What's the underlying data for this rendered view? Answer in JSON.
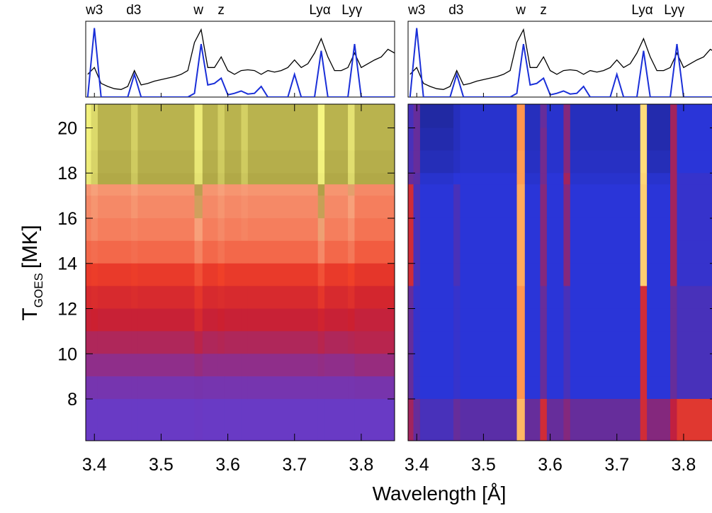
{
  "chart_data": {
    "type": "heatmap",
    "xlabel": "Wavelength [Å]",
    "ylabel": {
      "main": "T",
      "sub": "GOES",
      "unit": "[MK]"
    },
    "xlim": [
      3.387,
      3.85
    ],
    "ylim": [
      6.15,
      21.05
    ],
    "xticks": [
      3.4,
      3.5,
      3.6,
      3.7,
      3.8
    ],
    "yticks": [
      8,
      10,
      12,
      14,
      16,
      18,
      20
    ],
    "line_labels": [
      {
        "label": "w3",
        "x": 3.4
      },
      {
        "label": "d3",
        "x": 3.459
      },
      {
        "label": "w",
        "x": 3.556
      },
      {
        "label": "z",
        "x": 3.59
      },
      {
        "label": "Lyα",
        "x": 3.738
      },
      {
        "label": "Lyγ",
        "x": 3.786
      }
    ],
    "spectrum": {
      "ylim": [
        0,
        1
      ],
      "x": [
        3.39,
        3.4,
        3.41,
        3.42,
        3.43,
        3.44,
        3.45,
        3.46,
        3.47,
        3.48,
        3.49,
        3.5,
        3.51,
        3.52,
        3.53,
        3.54,
        3.55,
        3.56,
        3.57,
        3.58,
        3.59,
        3.6,
        3.61,
        3.62,
        3.63,
        3.64,
        3.65,
        3.66,
        3.67,
        3.68,
        3.69,
        3.7,
        3.71,
        3.72,
        3.73,
        3.74,
        3.75,
        3.76,
        3.77,
        3.78,
        3.79,
        3.8,
        3.81,
        3.82,
        3.83,
        3.84,
        3.85
      ],
      "series": [
        {
          "color": "#000000",
          "values": [
            0.3,
            0.39,
            0.18,
            0.14,
            0.11,
            0.1,
            0.14,
            0.35,
            0.16,
            0.18,
            0.21,
            0.23,
            0.25,
            0.27,
            0.3,
            0.35,
            0.72,
            0.89,
            0.39,
            0.39,
            0.53,
            0.35,
            0.3,
            0.35,
            0.36,
            0.35,
            0.3,
            0.35,
            0.33,
            0.35,
            0.39,
            0.49,
            0.39,
            0.44,
            0.58,
            0.77,
            0.53,
            0.35,
            0.35,
            0.39,
            0.58,
            0.39,
            0.44,
            0.49,
            0.53,
            0.63,
            0.58
          ]
        },
        {
          "color": "#1a2fd8",
          "values": [
            0,
            0.91,
            0,
            0,
            0,
            0,
            0,
            0.3,
            0,
            0,
            0,
            0,
            0,
            0,
            0,
            0,
            0.05,
            0.7,
            0.16,
            0.18,
            0.25,
            0.03,
            0.05,
            0.08,
            0.04,
            0.05,
            0.14,
            0,
            0,
            0,
            0,
            0.3,
            0,
            0,
            0,
            0.61,
            0,
            0,
            0,
            0,
            0.7,
            0,
            0,
            0,
            0,
            0,
            0
          ]
        }
      ]
    },
    "x_edges": [
      3.387,
      3.395,
      3.405,
      3.455,
      3.465,
      3.55,
      3.562,
      3.585,
      3.595,
      3.62,
      3.63,
      3.735,
      3.745,
      3.78,
      3.79,
      3.85
    ],
    "y_edges": [
      21.05,
      20,
      19,
      18,
      17.5,
      17,
      16,
      15,
      14,
      13,
      12,
      11,
      10,
      9,
      8,
      6.15
    ],
    "panels": [
      {
        "show_yticks": true,
        "colormap": [
          {
            "stop": 0,
            "color": "#5a40e0"
          },
          {
            "stop": 0.25,
            "color": "#7a33a8"
          },
          {
            "stop": 0.45,
            "color": "#cc2030"
          },
          {
            "stop": 0.55,
            "color": "#f04028"
          },
          {
            "stop": 0.72,
            "color": "#f7a07a"
          },
          {
            "stop": 0.8,
            "color": "#a8a040"
          },
          {
            "stop": 1,
            "color": "#ffff88"
          }
        ],
        "z": [
          [
            0.97,
            0.92,
            0.84,
            0.9,
            0.84,
            0.96,
            0.84,
            0.9,
            0.84,
            0.9,
            0.84,
            0.98,
            0.84,
            0.94,
            0.84
          ],
          [
            0.97,
            0.92,
            0.84,
            0.9,
            0.84,
            0.96,
            0.84,
            0.9,
            0.84,
            0.9,
            0.84,
            0.98,
            0.84,
            0.94,
            0.84
          ],
          [
            0.96,
            0.91,
            0.83,
            0.89,
            0.83,
            0.95,
            0.83,
            0.89,
            0.83,
            0.89,
            0.83,
            0.97,
            0.83,
            0.93,
            0.83
          ],
          [
            0.95,
            0.9,
            0.82,
            0.88,
            0.82,
            0.94,
            0.82,
            0.88,
            0.82,
            0.88,
            0.82,
            0.96,
            0.82,
            0.92,
            0.82
          ],
          [
            0.7,
            0.72,
            0.7,
            0.72,
            0.7,
            0.78,
            0.7,
            0.72,
            0.7,
            0.71,
            0.7,
            0.79,
            0.7,
            0.74,
            0.68
          ],
          [
            0.68,
            0.7,
            0.68,
            0.7,
            0.68,
            0.76,
            0.68,
            0.7,
            0.68,
            0.69,
            0.68,
            0.77,
            0.68,
            0.72,
            0.66
          ],
          [
            0.66,
            0.68,
            0.66,
            0.67,
            0.66,
            0.72,
            0.66,
            0.68,
            0.66,
            0.67,
            0.66,
            0.73,
            0.66,
            0.69,
            0.64
          ],
          [
            0.62,
            0.63,
            0.62,
            0.63,
            0.62,
            0.67,
            0.62,
            0.64,
            0.62,
            0.62,
            0.62,
            0.68,
            0.62,
            0.65,
            0.6
          ],
          [
            0.53,
            0.54,
            0.53,
            0.54,
            0.53,
            0.58,
            0.53,
            0.55,
            0.53,
            0.53,
            0.53,
            0.58,
            0.53,
            0.55,
            0.52
          ],
          [
            0.48,
            0.49,
            0.48,
            0.49,
            0.48,
            0.52,
            0.48,
            0.49,
            0.48,
            0.48,
            0.48,
            0.52,
            0.48,
            0.5,
            0.47
          ],
          [
            0.44,
            0.45,
            0.44,
            0.44,
            0.44,
            0.48,
            0.44,
            0.45,
            0.44,
            0.44,
            0.44,
            0.46,
            0.44,
            0.45,
            0.43
          ],
          [
            0.38,
            0.38,
            0.38,
            0.38,
            0.38,
            0.41,
            0.38,
            0.39,
            0.38,
            0.38,
            0.38,
            0.4,
            0.38,
            0.39,
            0.4
          ],
          [
            0.3,
            0.3,
            0.3,
            0.3,
            0.3,
            0.32,
            0.3,
            0.3,
            0.3,
            0.3,
            0.3,
            0.31,
            0.3,
            0.3,
            0.32
          ],
          [
            0.22,
            0.22,
            0.22,
            0.22,
            0.22,
            0.23,
            0.22,
            0.22,
            0.22,
            0.22,
            0.22,
            0.22,
            0.22,
            0.22,
            0.23
          ],
          [
            0.12,
            0.12,
            0.12,
            0.12,
            0.12,
            0.13,
            0.12,
            0.12,
            0.12,
            0.12,
            0.12,
            0.12,
            0.12,
            0.12,
            0.12
          ]
        ]
      },
      {
        "show_yticks": false,
        "colormap": [
          {
            "stop": 0,
            "color": "#101038"
          },
          {
            "stop": 0.3,
            "color": "#2a35d8"
          },
          {
            "stop": 0.55,
            "color": "#c02040"
          },
          {
            "stop": 0.75,
            "color": "#ff5020"
          },
          {
            "stop": 1,
            "color": "#ffff90"
          }
        ],
        "z": [
          [
            0.35,
            0.4,
            0.2,
            0.25,
            0.28,
            0.85,
            0.25,
            0.4,
            0.28,
            0.45,
            0.25,
            0.95,
            0.22,
            0.5,
            0.3
          ],
          [
            0.35,
            0.4,
            0.22,
            0.25,
            0.28,
            0.85,
            0.25,
            0.42,
            0.28,
            0.45,
            0.25,
            0.95,
            0.22,
            0.5,
            0.3
          ],
          [
            0.36,
            0.4,
            0.24,
            0.26,
            0.28,
            0.86,
            0.26,
            0.42,
            0.28,
            0.45,
            0.26,
            0.95,
            0.24,
            0.5,
            0.3
          ],
          [
            0.4,
            0.38,
            0.28,
            0.3,
            0.3,
            0.86,
            0.28,
            0.42,
            0.3,
            0.5,
            0.28,
            0.94,
            0.28,
            0.5,
            0.32
          ],
          [
            0.6,
            0.35,
            0.3,
            0.35,
            0.3,
            0.88,
            0.3,
            0.45,
            0.3,
            0.45,
            0.3,
            0.93,
            0.3,
            0.5,
            0.32
          ],
          [
            0.6,
            0.35,
            0.3,
            0.35,
            0.3,
            0.88,
            0.3,
            0.45,
            0.3,
            0.45,
            0.3,
            0.93,
            0.3,
            0.5,
            0.32
          ],
          [
            0.6,
            0.35,
            0.3,
            0.35,
            0.3,
            0.88,
            0.3,
            0.45,
            0.3,
            0.45,
            0.3,
            0.93,
            0.3,
            0.5,
            0.32
          ],
          [
            0.6,
            0.35,
            0.3,
            0.35,
            0.3,
            0.88,
            0.3,
            0.45,
            0.3,
            0.45,
            0.3,
            0.93,
            0.3,
            0.5,
            0.32
          ],
          [
            0.6,
            0.35,
            0.3,
            0.35,
            0.3,
            0.88,
            0.3,
            0.45,
            0.3,
            0.45,
            0.3,
            0.93,
            0.3,
            0.5,
            0.32
          ],
          [
            0.4,
            0.32,
            0.3,
            0.32,
            0.3,
            0.85,
            0.3,
            0.4,
            0.3,
            0.35,
            0.3,
            0.6,
            0.3,
            0.4,
            0.35
          ],
          [
            0.4,
            0.32,
            0.3,
            0.32,
            0.3,
            0.85,
            0.3,
            0.4,
            0.3,
            0.35,
            0.3,
            0.6,
            0.3,
            0.4,
            0.35
          ],
          [
            0.4,
            0.32,
            0.3,
            0.32,
            0.3,
            0.85,
            0.3,
            0.4,
            0.3,
            0.35,
            0.3,
            0.6,
            0.3,
            0.4,
            0.35
          ],
          [
            0.4,
            0.32,
            0.3,
            0.32,
            0.3,
            0.85,
            0.3,
            0.4,
            0.3,
            0.35,
            0.3,
            0.6,
            0.3,
            0.4,
            0.35
          ],
          [
            0.4,
            0.32,
            0.3,
            0.32,
            0.3,
            0.85,
            0.3,
            0.4,
            0.3,
            0.35,
            0.3,
            0.6,
            0.3,
            0.4,
            0.35
          ],
          [
            0.5,
            0.4,
            0.35,
            0.4,
            0.38,
            0.9,
            0.4,
            0.6,
            0.4,
            0.45,
            0.4,
            0.6,
            0.45,
            0.55,
            0.65
          ]
        ]
      }
    ]
  }
}
